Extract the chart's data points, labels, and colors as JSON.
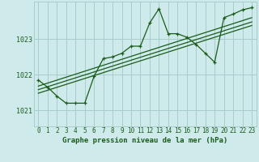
{
  "title": "Graphe pression niveau de la mer (hPa)",
  "bg_color": "#ceeaea",
  "grid_color": "#a8cccc",
  "line_color": "#1a5c1a",
  "y_ticks": [
    1021,
    1022,
    1023
  ],
  "ylim": [
    1020.55,
    1024.05
  ],
  "xlim": [
    -0.5,
    23.5
  ],
  "hours": [
    0,
    1,
    2,
    3,
    4,
    5,
    6,
    7,
    8,
    9,
    10,
    11,
    12,
    13,
    14,
    15,
    16,
    17,
    18,
    19,
    20,
    21,
    22,
    23
  ],
  "pressure": [
    1021.85,
    1021.65,
    1021.4,
    1021.2,
    1021.2,
    1021.2,
    1021.95,
    1022.45,
    1022.5,
    1022.6,
    1022.8,
    1022.8,
    1023.45,
    1023.85,
    1023.15,
    1023.15,
    1023.05,
    1022.85,
    1022.6,
    1022.35,
    1023.6,
    1023.7,
    1023.82,
    1023.88
  ],
  "trend_lines": [
    {
      "x": [
        0,
        23
      ],
      "y": [
        1021.48,
        1023.38
      ]
    },
    {
      "x": [
        0,
        23
      ],
      "y": [
        1021.58,
        1023.48
      ]
    },
    {
      "x": [
        0,
        23
      ],
      "y": [
        1021.68,
        1023.6
      ]
    }
  ],
  "label_fontsize": 5.5,
  "ylabel_fontsize": 6.0,
  "title_fontsize": 6.5
}
